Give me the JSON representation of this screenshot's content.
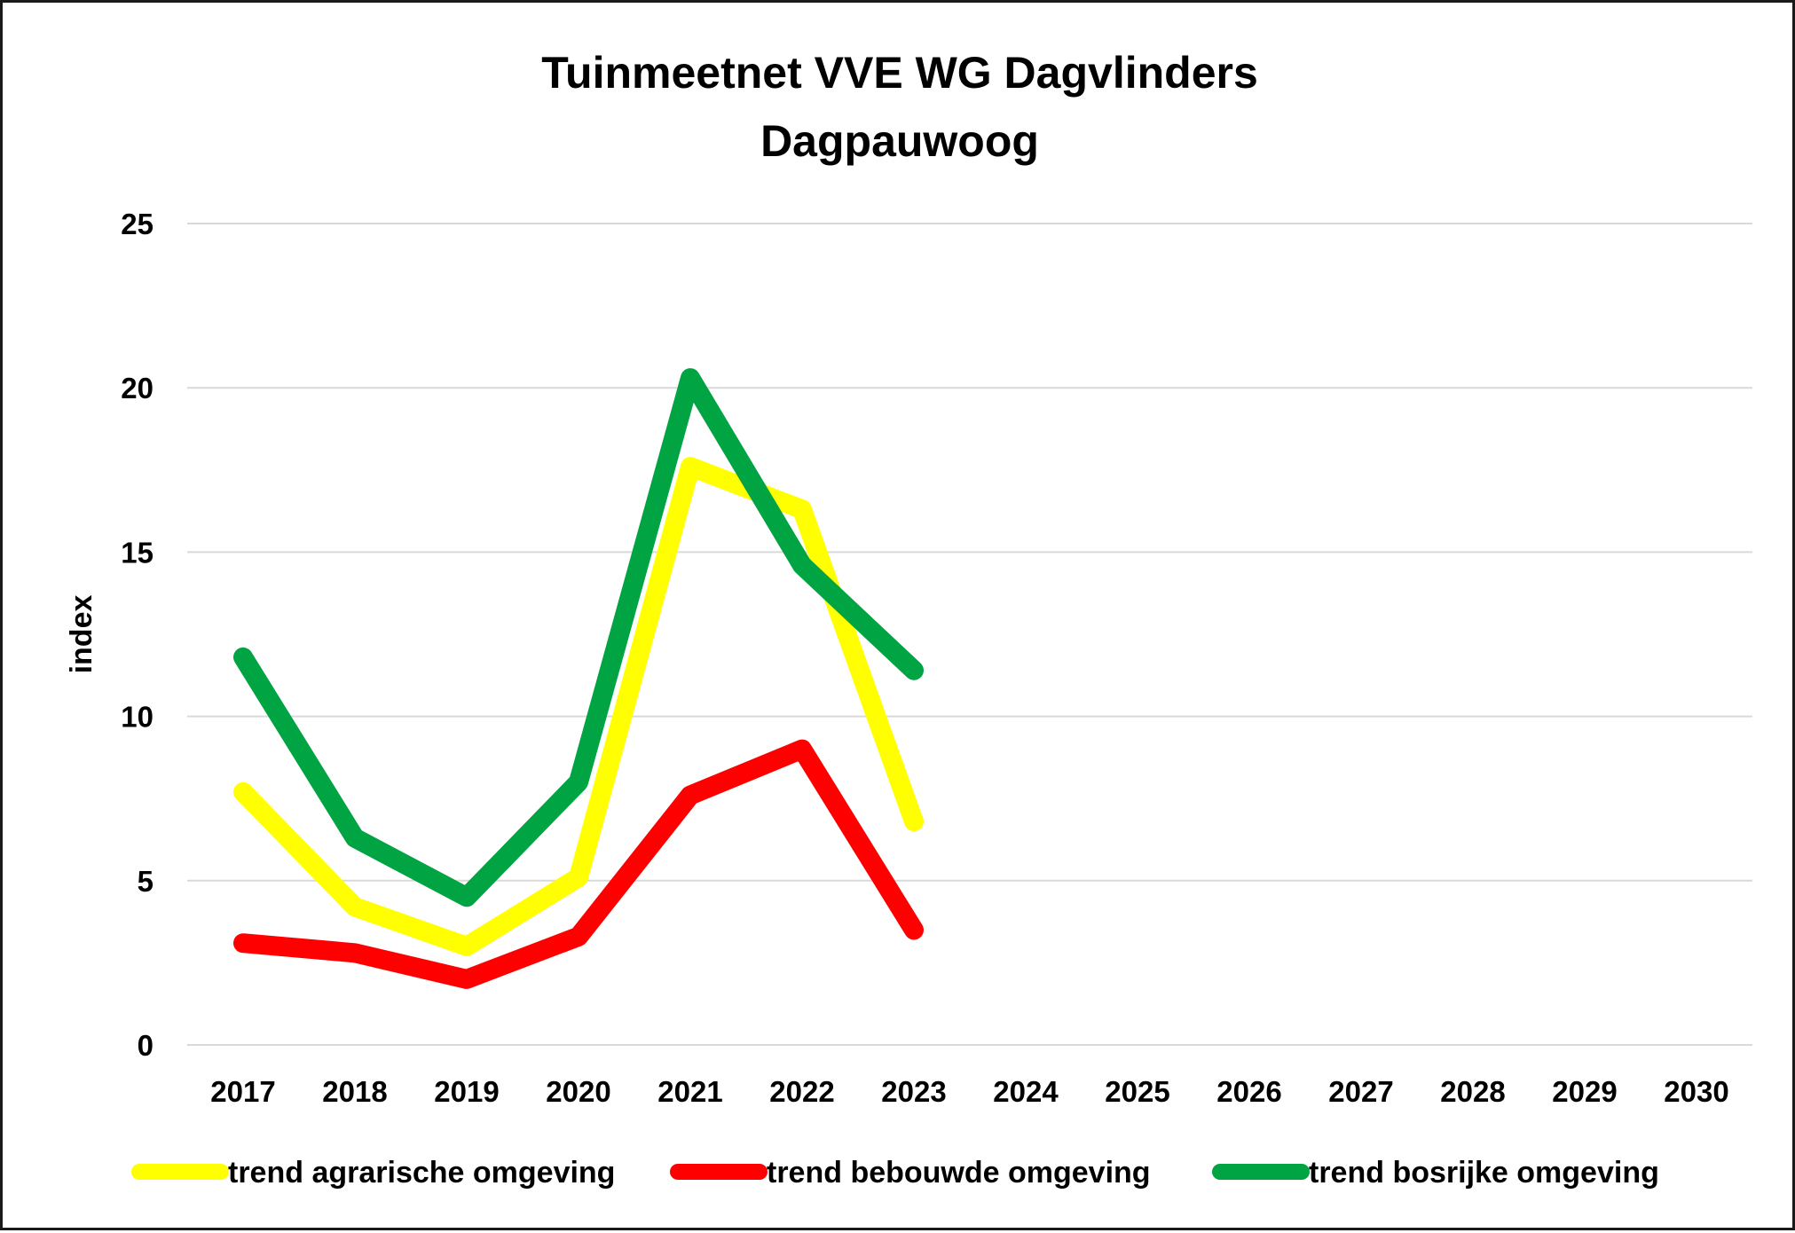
{
  "chart_data": {
    "type": "line",
    "title_lines": [
      "Tuinmeetnet VVE WG Dagvlinders",
      "Dagpauwoog"
    ],
    "xlabel": "",
    "ylabel": "index",
    "ylim": [
      0,
      25
    ],
    "yticks": [
      0,
      5,
      10,
      15,
      20,
      25
    ],
    "categories": [
      "2017",
      "2018",
      "2019",
      "2020",
      "2021",
      "2022",
      "2023",
      "2024",
      "2025",
      "2026",
      "2027",
      "2028",
      "2029",
      "2030"
    ],
    "grid": true,
    "legend_position": "bottom",
    "series": [
      {
        "name": "trend agrarische omgeving",
        "color": "#ffff00",
        "values": [
          7.7,
          4.2,
          3.0,
          5.1,
          17.6,
          16.3,
          6.8,
          null,
          null,
          null,
          null,
          null,
          null,
          null
        ]
      },
      {
        "name": "trend bebouwde omgeving",
        "color": "#ff0000",
        "values": [
          3.1,
          2.8,
          2.0,
          3.3,
          7.6,
          9.0,
          3.5,
          null,
          null,
          null,
          null,
          null,
          null,
          null
        ]
      },
      {
        "name": "trend bosrijke omgeving",
        "color": "#00a443",
        "values": [
          11.8,
          6.3,
          4.5,
          8.0,
          20.3,
          14.6,
          11.4,
          null,
          null,
          null,
          null,
          null,
          null,
          null
        ]
      }
    ]
  }
}
